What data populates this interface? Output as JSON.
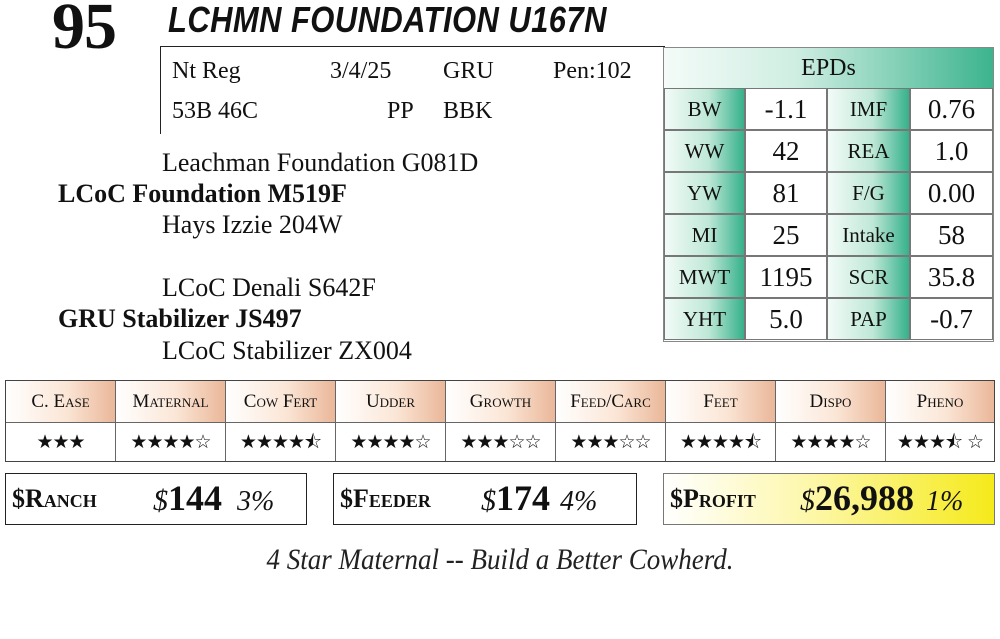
{
  "lot_number": "95",
  "animal_name": "LCHMN FOUNDATION U167N",
  "info": {
    "registration": "Nt Reg",
    "birth_date": "3/4/25",
    "breeder_code": "GRU",
    "pen": "Pen:102",
    "composition": "53B 46C",
    "polled": "PP",
    "color": "BBK"
  },
  "pedigree": {
    "sire_sire": "Leachman Foundation G081D",
    "sire": "LCoC Foundation M519F",
    "sire_dam": "Hays Izzie 204W",
    "dam_sire": "LCoC Denali S642F",
    "dam": "GRU Stabilizer JS497",
    "dam_dam": "LCoC Stabilizer ZX004"
  },
  "epds": {
    "title": "EPDs",
    "rows": [
      {
        "label1": "BW",
        "value1": "-1.1",
        "label2": "IMF",
        "value2": "0.76"
      },
      {
        "label1": "WW",
        "value1": "42",
        "label2": "REA",
        "value2": "1.0"
      },
      {
        "label1": "YW",
        "value1": "81",
        "label2": "F/G",
        "value2": "0.00"
      },
      {
        "label1": "MI",
        "value1": "25",
        "label2": "Intake",
        "value2": "58"
      },
      {
        "label1": "MWT",
        "value1": "1195",
        "label2": "SCR",
        "value2": "35.8"
      },
      {
        "label1": "YHT",
        "value1": "5.0",
        "label2": "PAP",
        "value2": "-0.7"
      }
    ]
  },
  "categories": [
    {
      "label": "C. Ease",
      "stars": "★★★"
    },
    {
      "label": "Maternal",
      "stars": "★★★★☆"
    },
    {
      "label": "Cow Fert",
      "stars": "★★★★⯪"
    },
    {
      "label": "Udder",
      "stars": "★★★★☆"
    },
    {
      "label": "Growth",
      "stars": "★★★☆☆"
    },
    {
      "label": "Feed/Carc",
      "stars": "★★★☆☆"
    },
    {
      "label": "Feet",
      "stars": "★★★★⯪"
    },
    {
      "label": "Dispo",
      "stars": "★★★★☆"
    },
    {
      "label": "Pheno",
      "stars": "★★★⯪ ☆"
    }
  ],
  "indexes": {
    "ranch": {
      "label": "$Ranch",
      "currency": "$",
      "value": "144",
      "percent": "3%"
    },
    "feeder": {
      "label": "$Feeder",
      "currency": "$",
      "value": "174",
      "percent": "4%"
    },
    "profit": {
      "label": "$Profit",
      "currency": "$",
      "value": "26,988",
      "percent": "1%"
    }
  },
  "slogan": "4 Star Maternal -- Build a Better Cowherd.",
  "colors": {
    "epd_accent": "#36b18b",
    "category_accent": "#eab799",
    "profit_accent": "#f5ea1a"
  }
}
